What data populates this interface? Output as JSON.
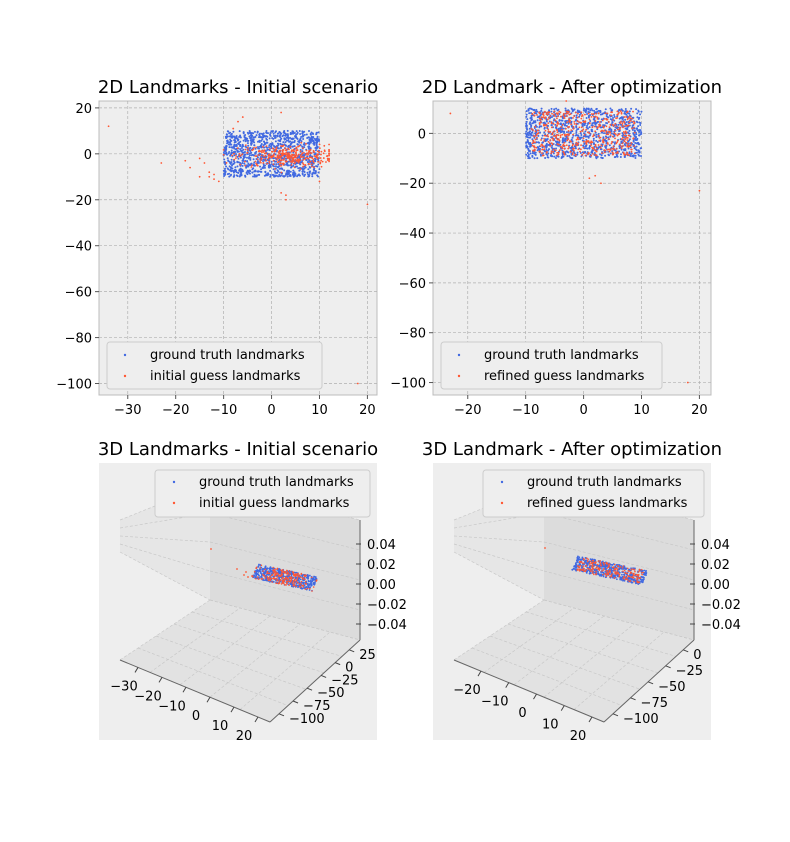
{
  "colors": {
    "ground_truth": "#4169e1",
    "guess": "#ff5733",
    "panel_bg": "#eeeeee",
    "grid": "#b0b0b0"
  },
  "chart_data": [
    {
      "type": "scatter",
      "title": "2D Landmarks - Initial scenario",
      "xlim": [
        -36,
        22
      ],
      "ylim": [
        -105,
        23
      ],
      "xticks": [
        -30,
        -20,
        -10,
        0,
        10,
        20
      ],
      "yticks": [
        20,
        0,
        -20,
        -40,
        -60,
        -80,
        -100
      ],
      "grid": true,
      "legend_position": "lower-left",
      "series": [
        {
          "name": "ground truth landmarks",
          "color": "#4169e1",
          "distribution": "uniform rectangle",
          "x_range": [
            -10,
            10
          ],
          "y_range": [
            -10,
            10
          ],
          "count": 1100
        },
        {
          "name": "initial guess landmarks",
          "color": "#ff5733",
          "distribution": "cluster",
          "center": [
            3,
            -1
          ],
          "spread": [
            5,
            2.5
          ],
          "count": 320,
          "outliers": [
            [
              -34,
              12
            ],
            [
              20,
              -22
            ],
            [
              18,
              -100
            ],
            [
              -23,
              -4
            ],
            [
              -18,
              -3
            ],
            [
              -17,
              -6
            ],
            [
              -15,
              -2
            ],
            [
              -14,
              -4
            ],
            [
              -13,
              -8
            ],
            [
              -12,
              -11
            ],
            [
              -11,
              -12
            ],
            [
              -12,
              -9
            ],
            [
              -13,
              -10
            ],
            [
              2,
              18
            ],
            [
              3,
              -18
            ],
            [
              3,
              -20
            ],
            [
              2,
              -17
            ],
            [
              -7,
              14
            ],
            [
              -6,
              16
            ],
            [
              -8,
              11
            ],
            [
              10,
              -12
            ],
            [
              -15,
              -10
            ]
          ]
        }
      ]
    },
    {
      "type": "scatter",
      "title": "2D Landmark - After optimization",
      "xlim": [
        -26,
        22
      ],
      "ylim": [
        -105,
        13
      ],
      "xticks": [
        -20,
        -10,
        0,
        10,
        20
      ],
      "yticks": [
        0,
        -20,
        -40,
        -60,
        -80,
        -100
      ],
      "grid": true,
      "legend_position": "lower-left",
      "series": [
        {
          "name": "ground truth landmarks",
          "color": "#4169e1",
          "distribution": "uniform rectangle",
          "x_range": [
            -10,
            10
          ],
          "y_range": [
            -10,
            10
          ],
          "count": 1100
        },
        {
          "name": "refined guess landmarks",
          "color": "#ff5733",
          "distribution": "uniform rectangle",
          "x_range": [
            -9,
            9
          ],
          "y_range": [
            -9,
            9
          ],
          "count": 500,
          "outliers": [
            [
              -23,
              8
            ],
            [
              20,
              -23
            ],
            [
              18,
              -100
            ],
            [
              2,
              -17
            ],
            [
              3,
              -20
            ],
            [
              1,
              -18
            ],
            [
              -3,
              13
            ]
          ]
        }
      ]
    },
    {
      "type": "scatter",
      "title": "3D Landmarks - Initial scenario",
      "x_ticks": [
        -30,
        -20,
        -10,
        0,
        10,
        20
      ],
      "y_ticks": [
        25,
        0,
        -25,
        -50,
        -75,
        -100
      ],
      "z_ticks": [
        0.04,
        0.02,
        0.0,
        -0.02,
        -0.04
      ],
      "z_tick_labels": [
        "0.04",
        "0.02",
        "0.00",
        "−0.02",
        "−0.04"
      ],
      "legend_position": "upper-right",
      "series": [
        {
          "name": "ground truth landmarks",
          "color": "#4169e1"
        },
        {
          "name": "initial guess landmarks",
          "color": "#ff5733"
        }
      ]
    },
    {
      "type": "scatter",
      "title": "3D Landmark - After optimization",
      "x_ticks": [
        -20,
        -10,
        0,
        10,
        20
      ],
      "y_ticks": [
        0,
        -25,
        -50,
        -75,
        -100
      ],
      "z_ticks": [
        0.04,
        0.02,
        0.0,
        -0.02,
        -0.04
      ],
      "z_tick_labels": [
        "0.04",
        "0.02",
        "0.00",
        "−0.02",
        "−0.04"
      ],
      "legend_position": "upper-right",
      "series": [
        {
          "name": "ground truth landmarks",
          "color": "#4169e1"
        },
        {
          "name": "refined guess landmarks",
          "color": "#ff5733"
        }
      ]
    }
  ]
}
